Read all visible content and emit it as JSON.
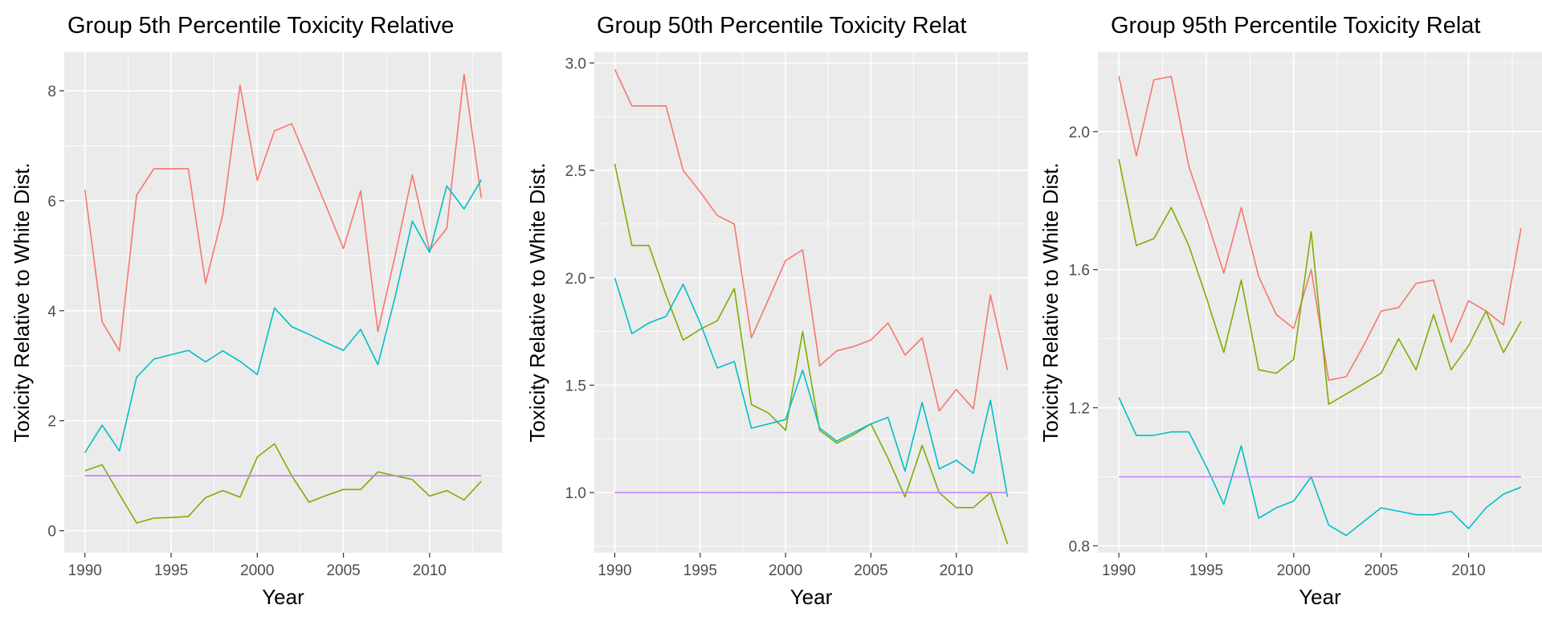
{
  "chart_data": [
    {
      "type": "line",
      "title": "Group 5th Percentile Toxicity Relative",
      "xlabel": "Year",
      "ylabel": "Toxicity Relative to White Dist.",
      "xlim": [
        1988.8,
        2014.2
      ],
      "ylim": [
        -0.4,
        8.7
      ],
      "x_ticks": [
        1990,
        1995,
        2000,
        2005,
        2010
      ],
      "y_ticks": [
        0,
        2,
        4,
        6,
        8
      ],
      "x": [
        1990,
        1991,
        1992,
        1993,
        1994,
        1995,
        1996,
        1997,
        1998,
        1999,
        2000,
        2001,
        2002,
        2003,
        2004,
        2005,
        2006,
        2007,
        2008,
        2009,
        2010,
        2011,
        2012,
        2013
      ],
      "grid": true,
      "legend": "none",
      "series": [
        {
          "color": "#F8766D",
          "values": [
            6.2,
            3.8,
            3.27,
            6.1,
            6.58,
            6.58,
            6.58,
            4.5,
            5.75,
            8.1,
            6.37,
            7.27,
            7.4,
            6.65,
            5.9,
            5.13,
            6.18,
            3.62,
            5.0,
            6.47,
            5.1,
            5.5,
            8.3,
            6.05
          ]
        },
        {
          "color": "#7CAE00",
          "values": [
            1.09,
            1.2,
            0.66,
            0.14,
            0.23,
            0.24,
            0.26,
            0.6,
            0.73,
            0.61,
            1.34,
            1.58,
            1.0,
            0.52,
            0.64,
            0.75,
            0.75,
            1.07,
            1.0,
            0.93,
            0.63,
            0.73,
            0.56,
            0.9
          ]
        },
        {
          "color": "#00BFC4",
          "values": [
            1.42,
            1.92,
            1.45,
            2.79,
            3.12,
            3.2,
            3.28,
            3.07,
            3.27,
            3.08,
            2.84,
            4.05,
            3.71,
            3.57,
            3.42,
            3.28,
            3.66,
            3.02,
            4.25,
            5.63,
            5.06,
            6.27,
            5.85,
            6.38
          ]
        },
        {
          "color": "#C77CFF",
          "values": [
            1,
            1,
            1,
            1,
            1,
            1,
            1,
            1,
            1,
            1,
            1,
            1,
            1,
            1,
            1,
            1,
            1,
            1,
            1,
            1,
            1,
            1,
            1,
            1
          ]
        }
      ]
    },
    {
      "type": "line",
      "title": "Group 50th Percentile Toxicity Relat",
      "xlabel": "Year",
      "ylabel": "Toxicity Relative to White Dist.",
      "xlim": [
        1988.8,
        2014.2
      ],
      "ylim": [
        0.72,
        3.05
      ],
      "x_ticks": [
        1990,
        1995,
        2000,
        2005,
        2010
      ],
      "y_ticks": [
        1.0,
        1.5,
        2.0,
        2.5,
        3.0
      ],
      "x": [
        1990,
        1991,
        1992,
        1993,
        1994,
        1995,
        1996,
        1997,
        1998,
        1999,
        2000,
        2001,
        2002,
        2003,
        2004,
        2005,
        2006,
        2007,
        2008,
        2009,
        2010,
        2011,
        2012,
        2013
      ],
      "grid": true,
      "legend": "none",
      "series": [
        {
          "color": "#F8766D",
          "values": [
            2.97,
            2.8,
            2.8,
            2.8,
            2.5,
            2.4,
            2.29,
            2.25,
            1.72,
            1.9,
            2.08,
            2.13,
            1.59,
            1.66,
            1.68,
            1.71,
            1.79,
            1.64,
            1.72,
            1.38,
            1.48,
            1.39,
            1.92,
            1.57
          ]
        },
        {
          "color": "#7CAE00",
          "values": [
            2.53,
            2.15,
            2.15,
            1.92,
            1.71,
            1.76,
            1.8,
            1.95,
            1.41,
            1.37,
            1.29,
            1.75,
            1.29,
            1.23,
            1.27,
            1.32,
            1.16,
            0.98,
            1.22,
            1.0,
            0.93,
            0.93,
            1.0,
            0.76
          ]
        },
        {
          "color": "#00BFC4",
          "values": [
            2.0,
            1.74,
            1.79,
            1.82,
            1.97,
            1.79,
            1.58,
            1.61,
            1.3,
            1.32,
            1.34,
            1.57,
            1.3,
            1.24,
            1.28,
            1.32,
            1.35,
            1.1,
            1.42,
            1.11,
            1.15,
            1.09,
            1.43,
            0.98
          ]
        },
        {
          "color": "#C77CFF",
          "values": [
            1,
            1,
            1,
            1,
            1,
            1,
            1,
            1,
            1,
            1,
            1,
            1,
            1,
            1,
            1,
            1,
            1,
            1,
            1,
            1,
            1,
            1,
            1,
            1
          ]
        }
      ]
    },
    {
      "type": "line",
      "title": "Group 95th Percentile Toxicity Relat",
      "xlabel": "Year",
      "ylabel": "Toxicity Relative to White Dist.",
      "xlim": [
        1988.8,
        2014.2
      ],
      "ylim": [
        0.78,
        2.23
      ],
      "x_ticks": [
        1990,
        1995,
        2000,
        2005,
        2010
      ],
      "y_ticks": [
        0.8,
        1.2,
        1.6,
        2.0
      ],
      "x": [
        1990,
        1991,
        1992,
        1993,
        1994,
        1995,
        1996,
        1997,
        1998,
        1999,
        2000,
        2001,
        2002,
        2003,
        2004,
        2005,
        2006,
        2007,
        2008,
        2009,
        2010,
        2011,
        2012,
        2013
      ],
      "grid": true,
      "legend": "none",
      "series": [
        {
          "color": "#F8766D",
          "values": [
            2.16,
            1.93,
            2.15,
            2.16,
            1.9,
            1.75,
            1.59,
            1.78,
            1.58,
            1.47,
            1.43,
            1.6,
            1.28,
            1.29,
            1.38,
            1.48,
            1.49,
            1.56,
            1.57,
            1.39,
            1.51,
            1.48,
            1.44,
            1.72
          ]
        },
        {
          "color": "#7CAE00",
          "values": [
            1.92,
            1.67,
            1.69,
            1.78,
            1.67,
            1.52,
            1.36,
            1.57,
            1.31,
            1.3,
            1.34,
            1.71,
            1.21,
            1.24,
            1.27,
            1.3,
            1.4,
            1.31,
            1.47,
            1.31,
            1.38,
            1.48,
            1.36,
            1.45
          ]
        },
        {
          "color": "#00BFC4",
          "values": [
            1.23,
            1.12,
            1.12,
            1.13,
            1.13,
            1.03,
            0.92,
            1.09,
            0.88,
            0.91,
            0.93,
            1.0,
            0.86,
            0.83,
            0.87,
            0.91,
            0.9,
            0.89,
            0.89,
            0.9,
            0.85,
            0.91,
            0.95,
            0.97
          ]
        },
        {
          "color": "#C77CFF",
          "values": [
            1,
            1,
            1,
            1,
            1,
            1,
            1,
            1,
            1,
            1,
            1,
            1,
            1,
            1,
            1,
            1,
            1,
            1,
            1,
            1,
            1,
            1,
            1,
            1
          ]
        }
      ]
    }
  ]
}
